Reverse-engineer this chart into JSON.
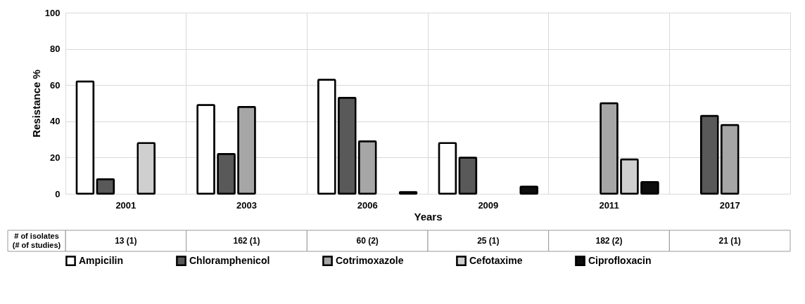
{
  "chart_data": {
    "type": "bar",
    "xlabel": "Years",
    "ylabel": "Resistance %",
    "categories": [
      "2001",
      "2003",
      "2006",
      "2009",
      "2011",
      "2017"
    ],
    "series": [
      {
        "name": "Ampicilin",
        "color": "#ffffff",
        "values": [
          62,
          49,
          63,
          28,
          null,
          null
        ]
      },
      {
        "name": "Chloramphenicol",
        "color": "#595959",
        "values": [
          8,
          22,
          53,
          20,
          null,
          43
        ]
      },
      {
        "name": "Cotrimoxazole",
        "color": "#a6a6a6",
        "values": [
          null,
          48,
          29,
          null,
          50,
          38
        ]
      },
      {
        "name": "Cefotaxime",
        "color": "#cfcfcf",
        "values": [
          28,
          null,
          null,
          null,
          19,
          null
        ]
      },
      {
        "name": "Ciprofloxacin",
        "color": "#0d0d0d",
        "values": [
          null,
          null,
          1,
          4,
          6.5,
          null
        ]
      }
    ],
    "ylim": [
      0,
      100
    ],
    "yticks": [
      0,
      20,
      40,
      60,
      80,
      100
    ],
    "grid": true,
    "legend": "bottom",
    "annotations": [
      "# of isolates\n(# of studies)",
      "13 (1)",
      "162 (1)",
      "60 (2)",
      "25 (1)",
      "182 (2)",
      "21 (1)"
    ]
  }
}
